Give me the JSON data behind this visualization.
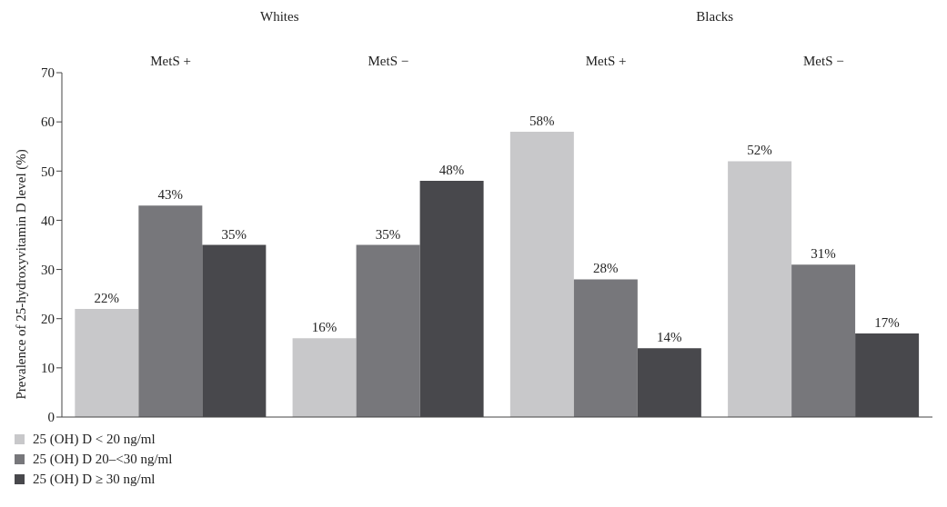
{
  "chart_data": {
    "type": "bar",
    "categories": [
      "MetS +",
      "MetS −",
      "MetS +",
      "MetS −"
    ],
    "ylabel": "Prevalence of 25-hydroxyvitamin D level (%)",
    "ylim": [
      0,
      70
    ],
    "yticks": [
      0,
      10,
      20,
      30,
      40,
      50,
      60,
      70
    ],
    "annotations": [
      "Whites",
      "Blacks"
    ],
    "series": [
      {
        "name": "25 (OH) D < 20 ng/ml",
        "color": "#c8c8ca",
        "values": [
          22,
          16,
          58,
          52
        ],
        "value_labels": [
          "22%",
          "16%",
          "58%",
          "52%"
        ]
      },
      {
        "name": "25 (OH) D 20–<30 ng/ml",
        "color": "#77777b",
        "values": [
          43,
          35,
          28,
          31
        ],
        "value_labels": [
          "43%",
          "35%",
          "28%",
          "31%"
        ]
      },
      {
        "name": "25 (OH) D ≥ 30 ng/ml",
        "color": "#48484c",
        "values": [
          35,
          48,
          14,
          17
        ],
        "value_labels": [
          "35%",
          "48%",
          "14%",
          "17%"
        ]
      }
    ],
    "grid": false,
    "legend": "bottom left"
  }
}
